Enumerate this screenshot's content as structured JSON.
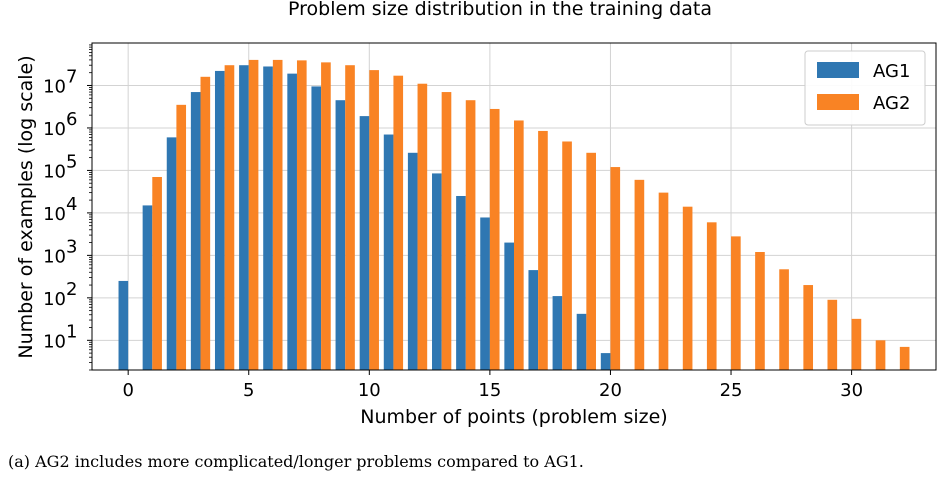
{
  "chart_data": {
    "type": "bar",
    "title": "Problem size distribution in the training data",
    "xlabel": "Number of points (problem size)",
    "ylabel": "Number of examples (log scale)",
    "yscale": "log",
    "xlim": [
      -1.5,
      33.5
    ],
    "ylim": [
      2,
      100000000
    ],
    "grid": true,
    "legend_position": "top-right",
    "xticks": [
      0,
      5,
      10,
      15,
      20,
      25,
      30
    ],
    "xtick_labels": [
      "0",
      "5",
      "10",
      "15",
      "20",
      "25",
      "30"
    ],
    "yticks": [
      10,
      100,
      1000,
      10000,
      100000,
      1000000,
      10000000
    ],
    "ytick_labels": [
      {
        "base": "10",
        "exp": "1"
      },
      {
        "base": "10",
        "exp": "2"
      },
      {
        "base": "10",
        "exp": "3"
      },
      {
        "base": "10",
        "exp": "4"
      },
      {
        "base": "10",
        "exp": "5"
      },
      {
        "base": "10",
        "exp": "6"
      },
      {
        "base": "10",
        "exp": "7"
      }
    ],
    "series": [
      {
        "name": "AG1",
        "color": "#2f77b2",
        "x": [
          0,
          1,
          2,
          3,
          4,
          5,
          6,
          7,
          8,
          9,
          10,
          11,
          12,
          13,
          14,
          15,
          16,
          17,
          18,
          19,
          20
        ],
        "values": [
          250,
          15000,
          600000,
          7000000,
          22000000,
          30000000,
          28000000,
          19000000,
          9500000,
          4500000,
          1900000,
          700000,
          260000,
          85000,
          25000,
          7800,
          2000,
          450,
          110,
          42,
          5
        ]
      },
      {
        "name": "AG2",
        "color": "#f98324",
        "x": [
          1,
          2,
          3,
          4,
          5,
          6,
          7,
          8,
          9,
          10,
          11,
          12,
          13,
          14,
          15,
          16,
          17,
          18,
          19,
          20,
          21,
          22,
          23,
          24,
          25,
          26,
          27,
          28,
          29,
          30,
          31,
          32
        ],
        "values": [
          70000,
          3500000,
          16000000,
          30000000,
          40000000,
          40000000,
          39000000,
          35000000,
          30000000,
          23000000,
          17000000,
          11000000,
          7000000,
          4500000,
          2800000,
          1500000,
          850000,
          480000,
          260000,
          120000,
          60000,
          30000,
          14000,
          6000,
          2800,
          1200,
          470,
          200,
          90,
          32,
          10,
          7
        ]
      }
    ]
  },
  "caption": "(a) AG2 includes more complicated/longer problems compared to AG1."
}
